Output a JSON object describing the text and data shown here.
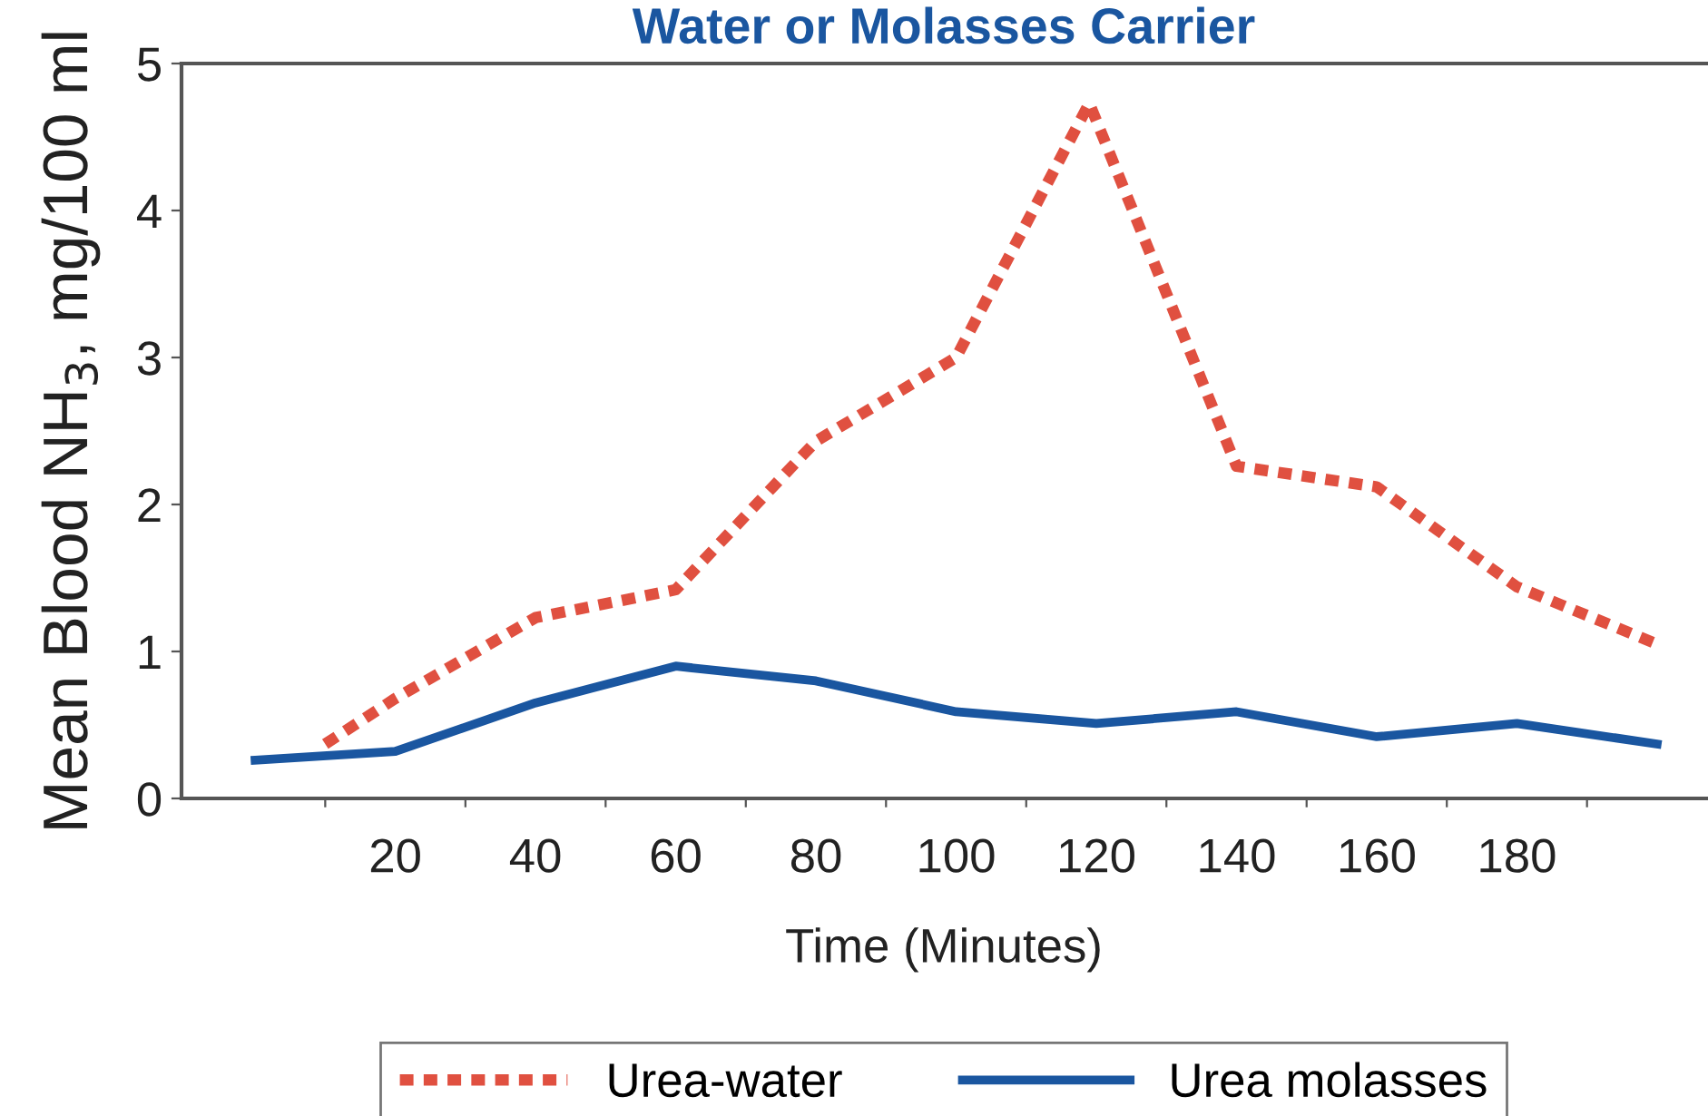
{
  "chart_data": {
    "type": "line",
    "title": "Water or Molasses Carrier",
    "xlabel": "Time (Minutes)",
    "ylabel": "Mean Blood NH$_{3}$, mg/100 ml",
    "xlim": [
      -10.5,
      207
    ],
    "ylim": [
      0,
      5
    ],
    "yticks": [
      0,
      1,
      2,
      3,
      4,
      5
    ],
    "xticks": [
      {
        "value": 10,
        "label": null
      },
      {
        "value": 20,
        "label": "20"
      },
      {
        "value": 30,
        "label": null
      },
      {
        "value": 40,
        "label": "40"
      },
      {
        "value": 50,
        "label": null
      },
      {
        "value": 60,
        "label": "60"
      },
      {
        "value": 70,
        "label": null
      },
      {
        "value": 80,
        "label": "80"
      },
      {
        "value": 90,
        "label": null
      },
      {
        "value": 100,
        "label": "100"
      },
      {
        "value": 110,
        "label": null
      },
      {
        "value": 120,
        "label": "120"
      },
      {
        "value": 130,
        "label": null
      },
      {
        "value": 140,
        "label": "140"
      },
      {
        "value": 150,
        "label": null
      },
      {
        "value": 160,
        "label": "160"
      },
      {
        "value": 170,
        "label": null
      },
      {
        "value": 180,
        "label": "180"
      },
      {
        "value": 190,
        "label": null
      }
    ],
    "grid": false,
    "legend": "bottom",
    "marker": "none",
    "series": [
      {
        "name": "Urea-water",
        "color": "#e05040",
        "line_style": "dotted",
        "x": [
          10,
          20,
          40,
          60,
          80,
          100,
          119,
          140,
          160,
          180,
          200
        ],
        "values": [
          0.37,
          0.68,
          1.23,
          1.42,
          2.43,
          3.0,
          4.73,
          2.26,
          2.12,
          1.44,
          1.05
        ]
      },
      {
        "name": "Urea molasses",
        "color": "#1a56a0",
        "line_style": "solid",
        "x": [
          0,
          20,
          40,
          60,
          80,
          100,
          120,
          140,
          160,
          180,
          200
        ],
        "values": [
          0.26,
          0.32,
          0.65,
          0.9,
          0.8,
          0.59,
          0.51,
          0.59,
          0.42,
          0.51,
          0.37
        ]
      }
    ]
  }
}
